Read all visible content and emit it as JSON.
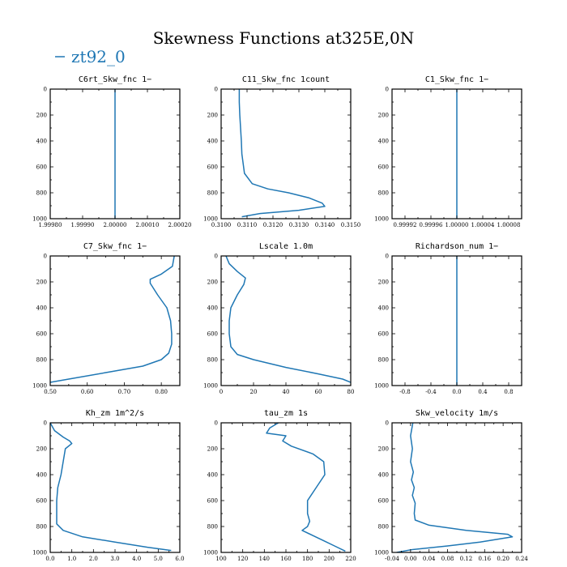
{
  "figure": {
    "title": "Skewness Functions at325E,0N",
    "legend_label": "zt92_0",
    "line_color": "#1f77b4"
  },
  "chart_data": [
    {
      "type": "line",
      "title": "C6rt_Skw_fnc   1−",
      "xlim": [
        1.9998,
        2.0002
      ],
      "ylim": [
        0,
        1000
      ],
      "xticks": [
        1.9998,
        1.9999,
        2.0,
        2.0001,
        2.0002
      ],
      "xtick_labels": [
        "1.99980",
        "1.99990",
        "2.00000",
        "2.00010",
        "2.00020"
      ],
      "yticks": [
        0,
        200,
        400,
        600,
        800,
        1000
      ],
      "series": [
        {
          "name": "zt92_0",
          "x": [
            2.0,
            2.0
          ],
          "y": [
            0,
            1000
          ]
        }
      ]
    },
    {
      "type": "line",
      "title": "C11_Skw_fnc   1count",
      "xlim": [
        0.31,
        0.315
      ],
      "ylim": [
        0,
        1000
      ],
      "xticks": [
        0.31,
        0.311,
        0.312,
        0.313,
        0.314,
        0.315
      ],
      "xtick_labels": [
        "0.3100",
        "0.3110",
        "0.3120",
        "0.3130",
        "0.3140",
        "0.3150"
      ],
      "yticks": [
        0,
        200,
        400,
        600,
        800,
        1000
      ],
      "series": [
        {
          "name": "zt92_0",
          "x": [
            0.3107,
            0.3107,
            0.31072,
            0.31075,
            0.31078,
            0.3108,
            0.3109,
            0.3112,
            0.3118,
            0.3126,
            0.3134,
            0.3139,
            0.314,
            0.313,
            0.3115,
            0.3108
          ],
          "y": [
            0,
            100,
            200,
            300,
            400,
            500,
            650,
            730,
            770,
            800,
            840,
            880,
            905,
            935,
            960,
            985
          ]
        }
      ]
    },
    {
      "type": "line",
      "title": "C1_Skw_fnc   1−",
      "xlim": [
        0.9999,
        1.0001
      ],
      "ylim": [
        0,
        1000
      ],
      "xticks": [
        0.99992,
        0.99996,
        1.0,
        1.00004,
        1.00008
      ],
      "xtick_labels": [
        "0.99992",
        "0.99996",
        "1.00000",
        "1.00004",
        "1.00008"
      ],
      "yticks": [
        0,
        200,
        400,
        600,
        800,
        1000
      ],
      "series": [
        {
          "name": "zt92_0",
          "x": [
            1.0,
            1.0
          ],
          "y": [
            0,
            1000
          ]
        }
      ]
    },
    {
      "type": "line",
      "title": "C7_Skw_fnc   1−",
      "xlim": [
        0.5,
        0.85
      ],
      "ylim": [
        0,
        1000
      ],
      "xticks": [
        0.5,
        0.6,
        0.7,
        0.8
      ],
      "xtick_labels": [
        "0.50",
        "0.60",
        "0.70",
        "0.80"
      ],
      "yticks": [
        0,
        200,
        400,
        600,
        800,
        1000
      ],
      "series": [
        {
          "name": "zt92_0",
          "x": [
            0.835,
            0.83,
            0.8,
            0.77,
            0.77,
            0.79,
            0.815,
            0.825,
            0.828,
            0.828,
            0.82,
            0.8,
            0.75,
            0.65,
            0.55,
            0.5
          ],
          "y": [
            0,
            80,
            140,
            180,
            210,
            300,
            400,
            500,
            600,
            680,
            750,
            800,
            850,
            900,
            950,
            975
          ]
        }
      ]
    },
    {
      "type": "line",
      "title": "Lscale   1.0m",
      "xlim": [
        0,
        80
      ],
      "ylim": [
        0,
        1000
      ],
      "xticks": [
        0,
        20,
        40,
        60,
        80
      ],
      "xtick_labels": [
        "0",
        "20",
        "40",
        "60",
        "80"
      ],
      "yticks": [
        0,
        200,
        400,
        600,
        800,
        1000
      ],
      "series": [
        {
          "name": "zt92_0",
          "x": [
            3,
            5,
            10,
            15,
            14,
            10,
            6,
            5,
            5,
            6,
            10,
            20,
            40,
            60,
            75,
            80
          ],
          "y": [
            0,
            60,
            120,
            170,
            220,
            300,
            400,
            500,
            600,
            700,
            760,
            800,
            860,
            910,
            950,
            975
          ]
        }
      ]
    },
    {
      "type": "line",
      "title": "Richardson_num   1−",
      "xlim": [
        -1.0,
        1.0
      ],
      "ylim": [
        0,
        1000
      ],
      "xticks": [
        -0.8,
        -0.4,
        0.0,
        0.4,
        0.8
      ],
      "xtick_labels": [
        "-0.8",
        "-0.4",
        "0.0",
        "0.4",
        "0.8"
      ],
      "yticks": [
        0,
        200,
        400,
        600,
        800,
        1000
      ],
      "series": [
        {
          "name": "zt92_0",
          "x": [
            0.0,
            0.0
          ],
          "y": [
            0,
            1000
          ]
        }
      ]
    },
    {
      "type": "line",
      "title": "Kh_zm   1m^2/s",
      "xlim": [
        0,
        6.0
      ],
      "ylim": [
        0,
        1000
      ],
      "xticks": [
        0,
        1,
        2,
        3,
        4,
        5,
        6
      ],
      "xtick_labels": [
        "0.0",
        "1.0",
        "2.0",
        "3.0",
        "4.0",
        "5.0",
        "6.0"
      ],
      "yticks": [
        0,
        200,
        400,
        600,
        800,
        1000
      ],
      "series": [
        {
          "name": "zt92_0",
          "x": [
            0.0,
            0.2,
            0.6,
            0.9,
            1.0,
            0.7,
            0.6,
            0.5,
            0.35,
            0.3,
            0.3,
            0.3,
            0.6,
            1.5,
            3.0,
            4.5,
            5.6
          ],
          "y": [
            0,
            60,
            110,
            140,
            160,
            200,
            300,
            400,
            500,
            600,
            700,
            780,
            830,
            880,
            920,
            960,
            985
          ]
        }
      ]
    },
    {
      "type": "line",
      "title": "tau_zm   1s",
      "xlim": [
        100,
        220
      ],
      "ylim": [
        0,
        1000
      ],
      "xticks": [
        100,
        120,
        140,
        160,
        180,
        200,
        220
      ],
      "xtick_labels": [
        "100",
        "120",
        "140",
        "160",
        "180",
        "200",
        "220"
      ],
      "yticks": [
        0,
        200,
        400,
        600,
        800,
        1000
      ],
      "series": [
        {
          "name": "zt92_0",
          "x": [
            153,
            145,
            142,
            160,
            157,
            165,
            185,
            195,
            196,
            188,
            180,
            180,
            182,
            180,
            175,
            185,
            195,
            205,
            215
          ],
          "y": [
            0,
            40,
            80,
            100,
            140,
            180,
            240,
            300,
            400,
            500,
            600,
            700,
            760,
            800,
            830,
            870,
            910,
            950,
            990
          ]
        }
      ]
    },
    {
      "type": "line",
      "title": "Skw_velocity   1m/s",
      "xlim": [
        -0.04,
        0.24
      ],
      "ylim": [
        0,
        1000
      ],
      "xticks": [
        -0.04,
        0.0,
        0.04,
        0.08,
        0.12,
        0.16,
        0.2,
        0.24
      ],
      "xtick_labels": [
        "-0.04",
        "0.00",
        "0.04",
        "0.08",
        "0.12",
        "0.16",
        "0.20",
        "0.24"
      ],
      "yticks": [
        0,
        200,
        400,
        600,
        800,
        1000
      ],
      "series": [
        {
          "name": "zt92_0",
          "x": [
            0.005,
            0.0,
            0.004,
            0.0,
            0.006,
            0.002,
            0.008,
            0.004,
            0.01,
            0.008,
            0.01,
            0.04,
            0.12,
            0.21,
            0.22,
            0.15,
            0.08,
            0.0,
            -0.03
          ],
          "y": [
            0,
            100,
            200,
            300,
            380,
            440,
            500,
            560,
            620,
            700,
            750,
            790,
            830,
            860,
            880,
            920,
            950,
            980,
            1000
          ]
        }
      ]
    }
  ]
}
